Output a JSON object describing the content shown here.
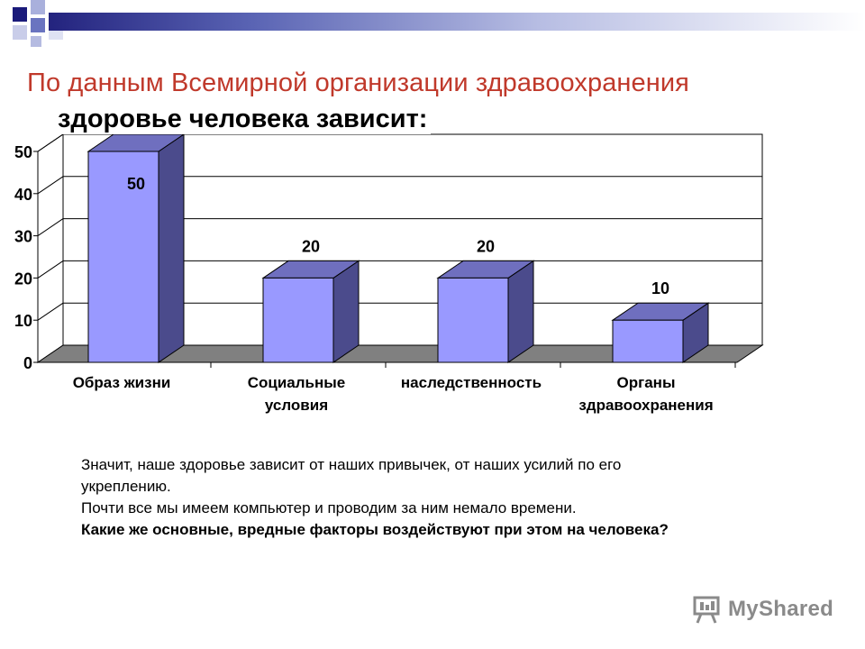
{
  "slide": {
    "title": "По данным Всемирной организации здравоохранения",
    "subtitle": "здоровье человека зависит:"
  },
  "chart_data": {
    "type": "bar",
    "categories": [
      [
        "Образ жизни"
      ],
      [
        "Социальные",
        "условия"
      ],
      [
        "наследственность"
      ],
      [
        "Органы",
        "здравоохранения"
      ]
    ],
    "values": [
      50,
      20,
      20,
      10
    ],
    "ylim": [
      0,
      50
    ],
    "yticks": [
      0,
      10,
      20,
      30,
      40,
      50
    ],
    "grid": true,
    "legend": "none",
    "style": "3d",
    "colors": {
      "bar_front": "#9999ff",
      "bar_side": "#4b4b8c",
      "bar_top": "#6f6fbf",
      "floor": "#808080"
    }
  },
  "body": {
    "lines": [
      "Значит, наше здоровье зависит от наших привычек, от наших усилий по его укреплению.",
      "Почти все мы имеем компьютер и проводим за ним немало времени."
    ],
    "question": "Какие же основные, вредные факторы воздействуют при этом на человека?"
  },
  "watermark": {
    "text": "MyShared",
    "icon": "presentation-icon"
  }
}
